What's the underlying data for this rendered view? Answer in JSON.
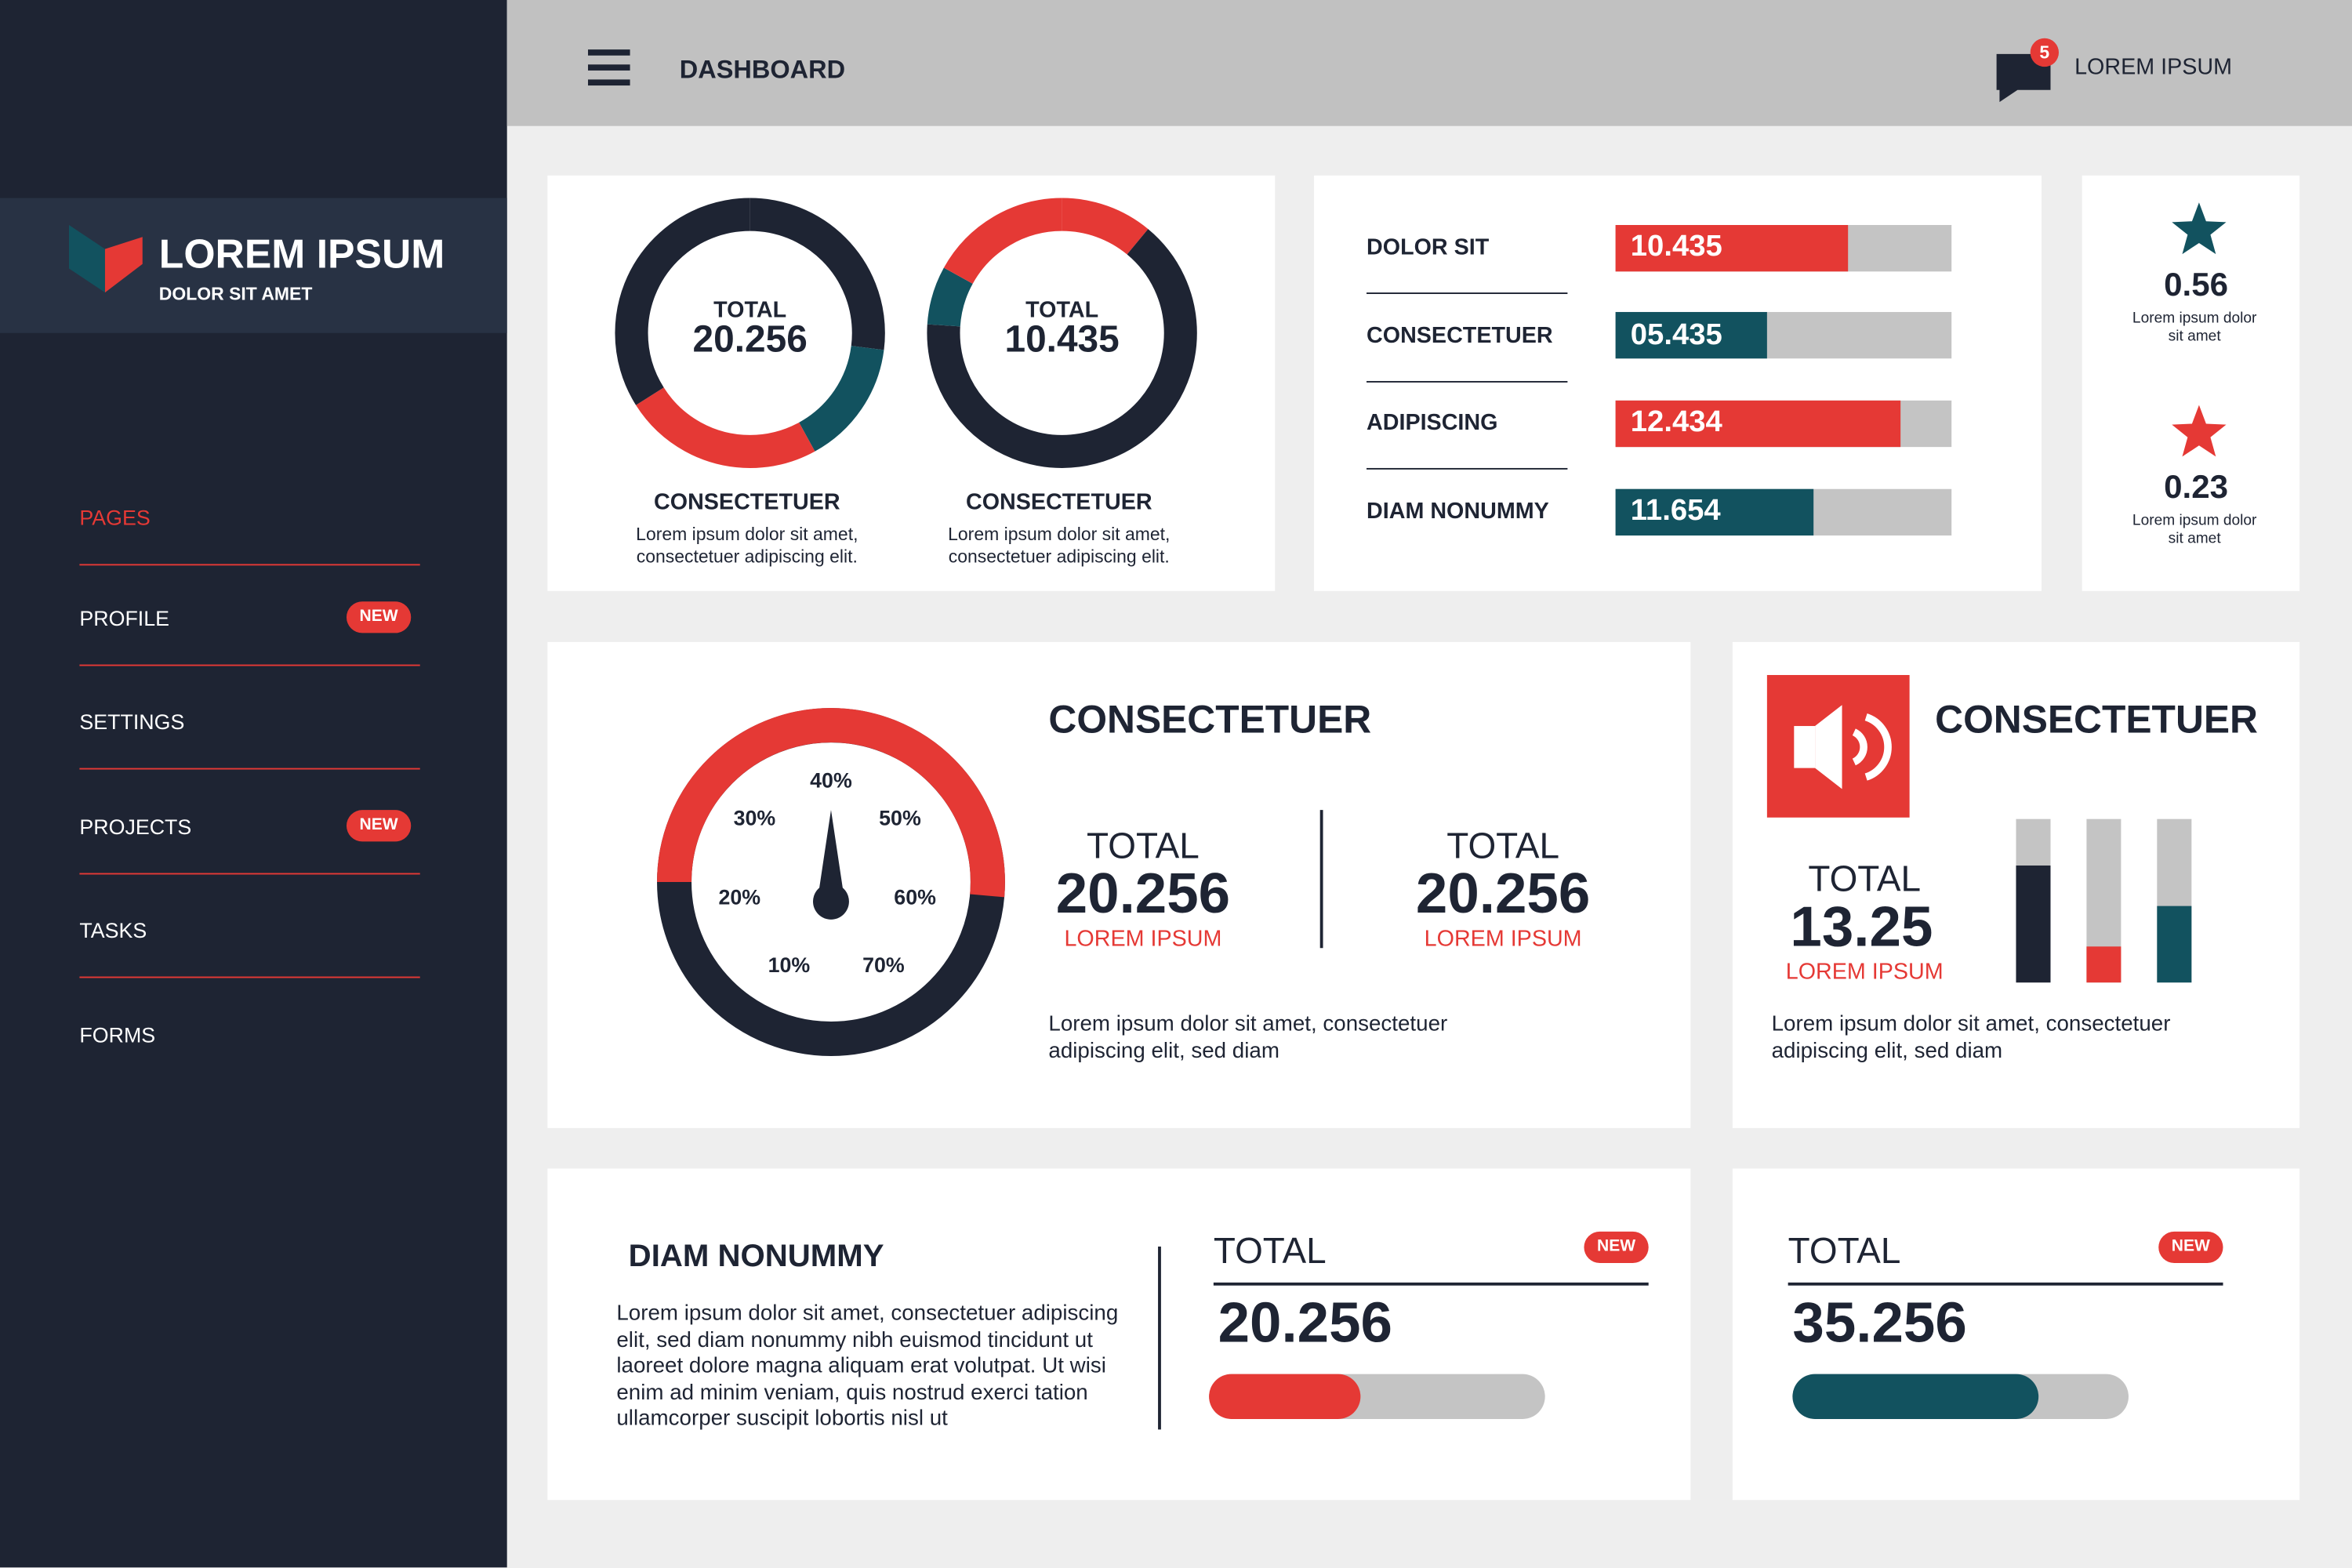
{
  "sidebar": {
    "brand": "LOREM IPSUM",
    "tagline": "DOLOR SIT AMET",
    "menu": [
      {
        "label": "PAGES",
        "active": true
      },
      {
        "label": "PROFILE",
        "badge": "NEW"
      },
      {
        "label": "SETTINGS"
      },
      {
        "label": "PROJECTS",
        "badge": "NEW"
      },
      {
        "label": "TASKS"
      },
      {
        "label": "FORMS"
      }
    ]
  },
  "header": {
    "title": "DASHBOARD",
    "notifications": "5",
    "user": "LOREM IPSUM"
  },
  "donuts": [
    {
      "label": "TOTAL",
      "value": "20.256",
      "title": "CONSECTETUER",
      "text": "Lorem ipsum dolor sit amet, consectetuer adipiscing elit.",
      "segments": [
        {
          "value": 27,
          "color": "#1e2433"
        },
        {
          "value": 15,
          "color": "#12525f"
        },
        {
          "value": 24,
          "color": "#e53935"
        },
        {
          "value": 34,
          "color": "#1e2433"
        }
      ]
    },
    {
      "label": "TOTAL",
      "value": "10.435",
      "title": "CONSECTETUER",
      "text": "Lorem ipsum dolor sit amet, consectetuer adipiscing elit.",
      "segments": [
        {
          "value": 11,
          "color": "#e53935"
        },
        {
          "value": 65,
          "color": "#1e2433"
        },
        {
          "value": 7,
          "color": "#12525f"
        },
        {
          "value": 17,
          "color": "#e53935"
        }
      ]
    }
  ],
  "bars": [
    {
      "label": "DOLOR SIT",
      "value": "10.435",
      "fill": 69,
      "color": "#e53935"
    },
    {
      "label": "CONSECTETUER",
      "value": "05.435",
      "fill": 45,
      "color": "#12525f"
    },
    {
      "label": "ADIPISCING",
      "value": "12.434",
      "fill": 85,
      "color": "#e53935"
    },
    {
      "label": "DIAM NONUMMY",
      "value": "11.654",
      "fill": 59,
      "color": "#12525f"
    }
  ],
  "ratings": [
    {
      "value": "0.56",
      "text": "Lorem ipsum dolor sit amet",
      "color": "#12525f"
    },
    {
      "value": "0.23",
      "text": "Lorem ipsum dolor sit amet",
      "color": "#e53935"
    }
  ],
  "gauge_card": {
    "title": "CONSECTETUER",
    "gauge_labels": [
      "10%",
      "20%",
      "30%",
      "40%",
      "50%",
      "60%",
      "70%"
    ],
    "totals": [
      {
        "label": "TOTAL",
        "value": "20.256",
        "caption": "LOREM IPSUM"
      },
      {
        "label": "TOTAL",
        "value": "20.256",
        "caption": "LOREM IPSUM"
      }
    ],
    "text": "Lorem ipsum dolor sit amet, consectetuer adipiscing elit, sed diam"
  },
  "audio_card": {
    "title": "CONSECTETUER",
    "label": "TOTAL",
    "value": "13.25",
    "caption": "LOREM IPSUM",
    "columns": [
      {
        "fill": 72,
        "color": "#1e2433"
      },
      {
        "fill": 22,
        "color": "#e53935"
      },
      {
        "fill": 47,
        "color": "#12525f"
      }
    ],
    "text": "Lorem ipsum dolor sit amet, consectetuer adipiscing elit, sed diam"
  },
  "text_card": {
    "title": "DIAM NONUMMY",
    "text": "Lorem ipsum dolor sit amet, consectetuer adipiscing elit, sed diam nonummy nibh euismod tincidunt ut laoreet dolore magna aliquam erat volutpat. Ut wisi enim ad minim veniam, quis nostrud exerci tation ullamcorper suscipit lobortis nisl ut"
  },
  "progress": [
    {
      "label": "TOTAL",
      "badge": "NEW",
      "value": "20.256",
      "fill": 45,
      "color": "#e53935"
    },
    {
      "label": "TOTAL",
      "badge": "NEW",
      "value": "35.256",
      "fill": 73,
      "color": "#12525f"
    }
  ]
}
